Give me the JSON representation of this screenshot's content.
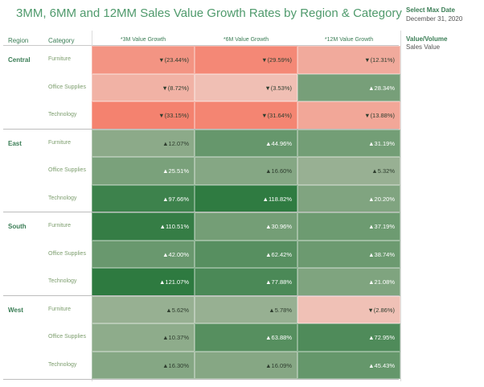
{
  "title": "3MM, 6MM and 12MM Sales Value Growth Rates by Region & Category",
  "controls": {
    "max_date_title": "Select Max Date",
    "max_date_value": "December 31, 2020",
    "measure_title": "Value/Volume",
    "measure_value": "Sales Value"
  },
  "headers": {
    "region": "Region",
    "category": "Category",
    "columns": [
      "*3M Value Growth",
      "*6M Value Growth",
      "*12M Value Growth"
    ]
  },
  "chart_data": {
    "type": "heatmap",
    "title": "3MM, 6MM and 12MM Sales Value Growth Rates by Region & Category",
    "columns": [
      "*3M Value Growth",
      "*6M Value Growth",
      "*12M Value Growth"
    ],
    "unit": "%",
    "color_scale": {
      "negative": "#f4826f",
      "neutral": "#eeddd6",
      "positive": "#2e7a40"
    },
    "regions": [
      {
        "name": "Central",
        "rows": [
          {
            "category": "Furniture",
            "values": [
              -23.44,
              -29.59,
              -12.31
            ],
            "labels": [
              "▼(23.44%)",
              "▼(29.59%)",
              "▼(12.31%)"
            ]
          },
          {
            "category": "Office Supplies",
            "values": [
              -8.72,
              -3.53,
              28.34
            ],
            "labels": [
              "▼(8.72%)",
              "▼(3.53%)",
              "▲28.34%"
            ]
          },
          {
            "category": "Technology",
            "values": [
              -33.15,
              -31.64,
              -13.88
            ],
            "labels": [
              "▼(33.15%)",
              "▼(31.64%)",
              "▼(13.88%)"
            ]
          }
        ]
      },
      {
        "name": "East",
        "rows": [
          {
            "category": "Furniture",
            "values": [
              12.07,
              44.96,
              31.19
            ],
            "labels": [
              "▲12.07%",
              "▲44.96%",
              "▲31.19%"
            ]
          },
          {
            "category": "Office Supplies",
            "values": [
              25.51,
              16.6,
              5.32
            ],
            "labels": [
              "▲25.51%",
              "▲16.60%",
              "▲5.32%"
            ]
          },
          {
            "category": "Technology",
            "values": [
              97.66,
              118.82,
              20.2
            ],
            "labels": [
              "▲97.66%",
              "▲118.82%",
              "▲20.20%"
            ]
          }
        ]
      },
      {
        "name": "South",
        "rows": [
          {
            "category": "Furniture",
            "values": [
              110.51,
              30.96,
              37.19
            ],
            "labels": [
              "▲110.51%",
              "▲30.96%",
              "▲37.19%"
            ]
          },
          {
            "category": "Office Supplies",
            "values": [
              42.0,
              62.42,
              38.74
            ],
            "labels": [
              "▲42.00%",
              "▲62.42%",
              "▲38.74%"
            ]
          },
          {
            "category": "Technology",
            "values": [
              121.07,
              77.88,
              21.08
            ],
            "labels": [
              "▲121.07%",
              "▲77.88%",
              "▲21.08%"
            ]
          }
        ]
      },
      {
        "name": "West",
        "rows": [
          {
            "category": "Furniture",
            "values": [
              5.62,
              5.78,
              -2.86
            ],
            "labels": [
              "▲5.62%",
              "▲5.78%",
              "▼(2.86%)"
            ]
          },
          {
            "category": "Office Supplies",
            "values": [
              10.37,
              63.88,
              72.95
            ],
            "labels": [
              "▲10.37%",
              "▲63.88%",
              "▲72.95%"
            ]
          },
          {
            "category": "Technology",
            "values": [
              16.3,
              16.09,
              45.43
            ],
            "labels": [
              "▲16.30%",
              "▲16.09%",
              "▲45.43%"
            ]
          }
        ]
      }
    ]
  }
}
